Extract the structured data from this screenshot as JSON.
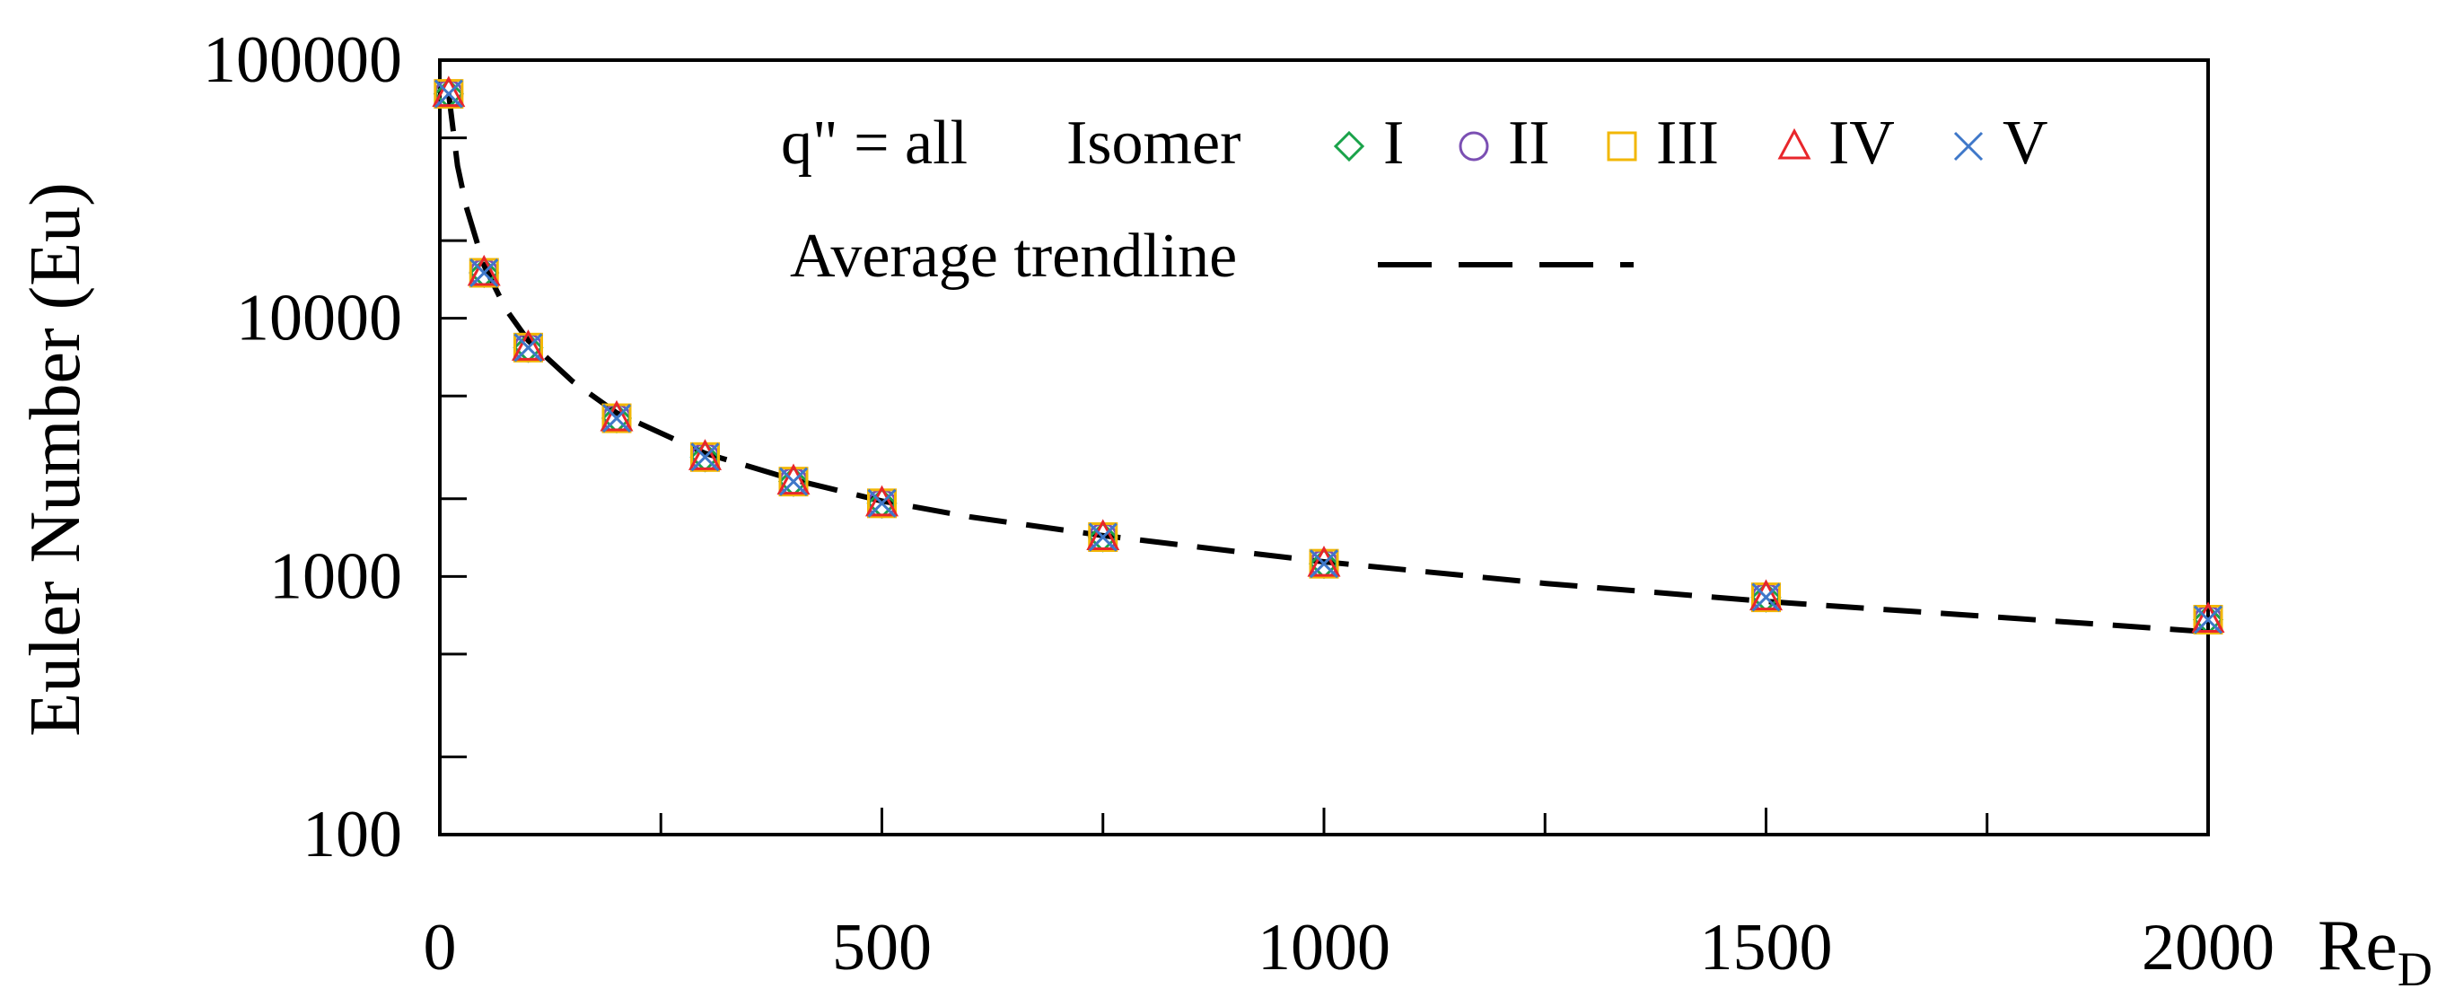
{
  "chart_data": {
    "type": "scatter",
    "title": "",
    "xlabel": "Re",
    "xlabel_sub": "D",
    "ylabel": "Euler Number (Eu)",
    "xlim": [
      0,
      2000
    ],
    "ylim": [
      100,
      100000
    ],
    "yscale": "log",
    "grid": false,
    "legend_position": "top-center",
    "x_ticks": [
      0,
      500,
      1000,
      1500,
      2000
    ],
    "x_tick_labels": [
      "0",
      "500",
      "1000",
      "1500",
      "2000"
    ],
    "y_ticks": [
      100,
      1000,
      10000,
      100000
    ],
    "y_tick_labels": [
      "100",
      "1000",
      "10000",
      "100000"
    ],
    "legend": {
      "condition": "q\" = all",
      "group_label": "Isomer",
      "trend_label": "Average trendline"
    },
    "x": [
      10,
      50,
      100,
      200,
      300,
      400,
      500,
      750,
      1000,
      1500,
      2000
    ],
    "series": [
      {
        "name": "I",
        "marker": "diamond",
        "color": "#1aa34a",
        "values": [
          74000,
          15000,
          7700,
          4100,
          2900,
          2330,
          1920,
          1420,
          1120,
          830,
          680
        ]
      },
      {
        "name": "II",
        "marker": "circle",
        "color": "#7b4fb3",
        "values": [
          74000,
          15000,
          7700,
          4100,
          2900,
          2330,
          1920,
          1420,
          1120,
          830,
          680
        ]
      },
      {
        "name": "III",
        "marker": "square",
        "color": "#f2b705",
        "values": [
          74000,
          15000,
          7700,
          4100,
          2900,
          2330,
          1920,
          1420,
          1120,
          830,
          680
        ]
      },
      {
        "name": "IV",
        "marker": "triangle",
        "color": "#e8262b",
        "values": [
          74000,
          15000,
          7700,
          4100,
          2900,
          2330,
          1920,
          1420,
          1120,
          830,
          680
        ]
      },
      {
        "name": "V",
        "marker": "cross",
        "color": "#3f78c9",
        "values": [
          74000,
          15000,
          7700,
          4100,
          2900,
          2330,
          1920,
          1420,
          1120,
          830,
          680
        ]
      }
    ],
    "trendline": {
      "style": "dashed",
      "color": "#000000",
      "x": [
        10,
        20,
        30,
        50,
        75,
        100,
        150,
        200,
        300,
        400,
        500,
        600,
        750,
        900,
        1000,
        1250,
        1500,
        1750,
        2000
      ],
      "y": [
        74000,
        39000,
        27000,
        16000,
        10800,
        8200,
        5700,
        4300,
        3000,
        2370,
        1960,
        1700,
        1440,
        1250,
        1140,
        940,
        800,
        700,
        610
      ]
    }
  }
}
